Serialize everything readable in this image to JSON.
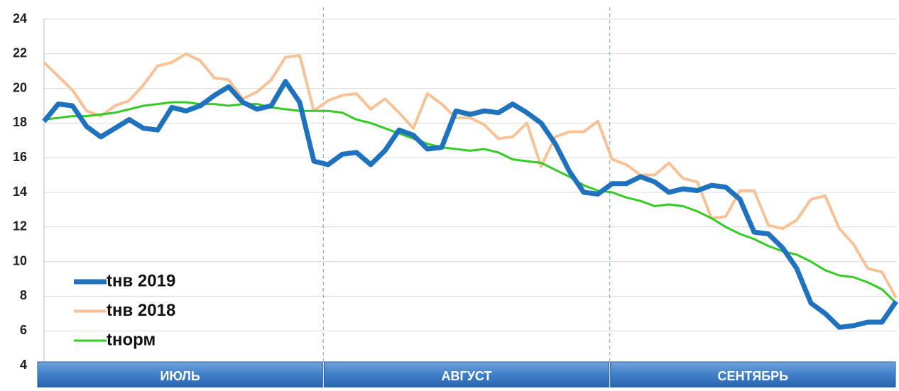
{
  "chart_data": {
    "type": "line",
    "months": [
      "ИЮЛЬ",
      "АВГУСТ",
      "СЕНТЯБРЬ"
    ],
    "ylim": [
      4,
      24
    ],
    "yticks": [
      4,
      6,
      8,
      10,
      12,
      14,
      16,
      18,
      20,
      22,
      24
    ],
    "grid": true,
    "legend": "lower left",
    "series": [
      {
        "name": "tнв 2019",
        "color": "#1f72bd",
        "values": [
          18.1,
          19.1,
          19.0,
          17.8,
          17.2,
          17.7,
          18.2,
          17.7,
          17.6,
          18.9,
          18.7,
          19.0,
          19.6,
          20.1,
          19.2,
          18.8,
          19.0,
          20.4,
          19.2,
          15.8,
          15.6,
          16.2,
          16.3,
          15.6,
          16.4,
          17.6,
          17.3,
          16.5,
          16.6,
          18.7,
          18.5,
          18.7,
          18.6,
          19.1,
          18.6,
          18.0,
          16.8,
          15.2,
          14.0,
          13.9,
          14.5,
          14.5,
          14.9,
          14.6,
          14.0,
          14.2,
          14.1,
          14.4,
          14.3,
          13.6,
          11.7,
          11.6,
          10.8,
          9.6,
          7.6,
          7.0,
          6.2,
          6.3,
          6.5,
          6.5,
          7.7
        ]
      },
      {
        "name": "tнв 2018",
        "color": "#f8c296",
        "values": [
          21.5,
          20.7,
          19.9,
          18.7,
          18.4,
          19.0,
          19.3,
          20.2,
          21.3,
          21.5,
          22.0,
          21.6,
          20.6,
          20.5,
          19.4,
          19.8,
          20.5,
          21.8,
          21.9,
          18.7,
          19.3,
          19.6,
          19.7,
          18.8,
          19.4,
          18.6,
          17.7,
          19.7,
          19.1,
          18.3,
          18.3,
          17.9,
          17.1,
          17.2,
          18.0,
          15.5,
          17.2,
          17.5,
          17.5,
          18.1,
          15.9,
          15.6,
          15.0,
          15.0,
          15.7,
          14.8,
          14.6,
          12.5,
          12.6,
          14.1,
          14.1,
          12.1,
          11.9,
          12.4,
          13.6,
          13.8,
          11.9,
          11.0,
          9.6,
          9.4,
          7.9
        ]
      },
      {
        "name": "tнорм",
        "color": "#33cc22",
        "values": [
          18.2,
          18.3,
          18.4,
          18.4,
          18.5,
          18.6,
          18.8,
          19.0,
          19.1,
          19.2,
          19.2,
          19.1,
          19.1,
          19.0,
          19.1,
          19.1,
          18.9,
          18.8,
          18.7,
          18.7,
          18.7,
          18.6,
          18.2,
          18.0,
          17.7,
          17.4,
          17.1,
          16.8,
          16.6,
          16.5,
          16.4,
          16.5,
          16.3,
          15.9,
          15.8,
          15.7,
          15.3,
          14.9,
          14.4,
          14.1,
          14.0,
          13.7,
          13.5,
          13.2,
          13.3,
          13.2,
          12.9,
          12.5,
          12.0,
          11.6,
          11.3,
          10.9,
          10.6,
          10.4,
          10.0,
          9.5,
          9.2,
          9.1,
          8.8,
          8.4,
          7.6
        ]
      }
    ]
  }
}
